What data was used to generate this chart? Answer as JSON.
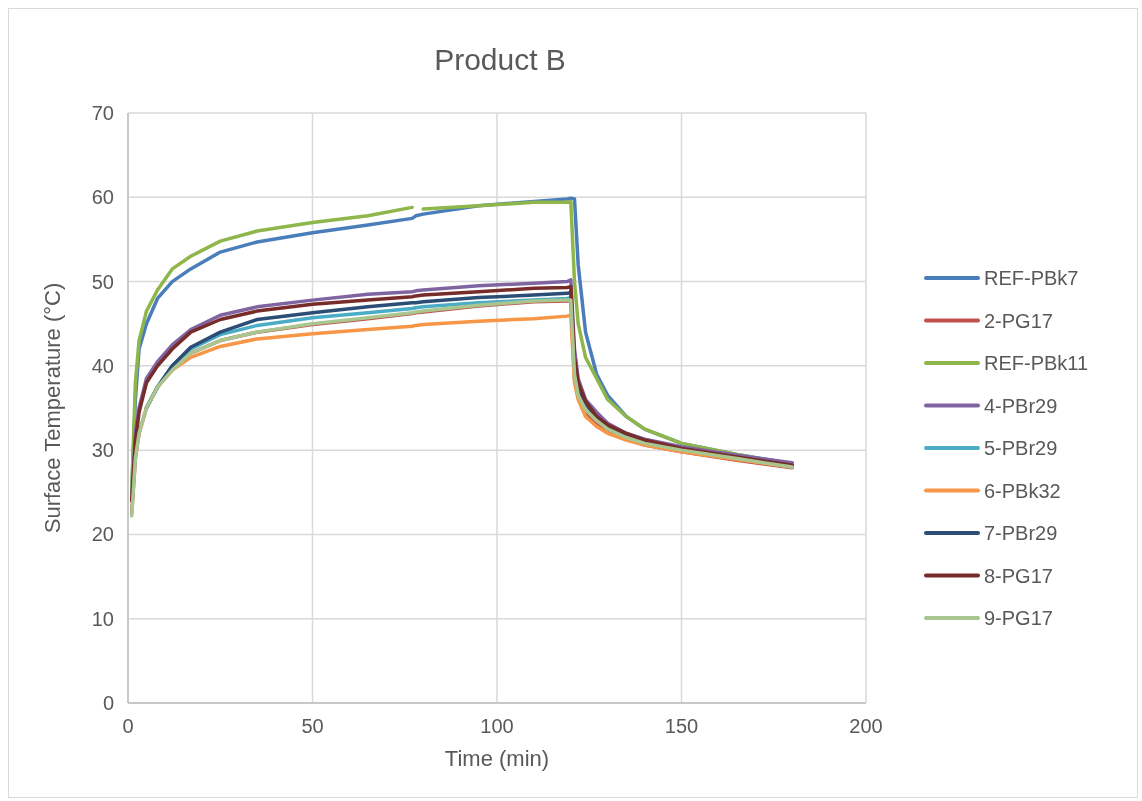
{
  "chart_data": {
    "type": "line",
    "title": "Product B",
    "xlabel": "Time (min)",
    "ylabel": "Surface Temperature (°C)",
    "x": [
      1,
      2,
      3,
      5,
      8,
      12,
      17,
      25,
      35,
      50,
      65,
      77,
      78,
      80,
      95,
      110,
      119,
      120,
      121,
      122,
      124,
      127,
      130,
      135,
      140,
      150,
      165,
      180
    ],
    "xlim": [
      0,
      200
    ],
    "xticks": [
      0,
      50,
      100,
      150,
      200
    ],
    "ylim": [
      0,
      70
    ],
    "yticks": [
      0,
      10,
      20,
      30,
      40,
      50,
      60,
      70
    ],
    "grid": true,
    "legend": "right",
    "line_style": "solid",
    "marker": "none",
    "series": [
      {
        "name": "REF-PBk7",
        "color": "#4a7ebb",
        "values": [
          25,
          36,
          42,
          45,
          48,
          50,
          51.5,
          53.5,
          54.7,
          55.8,
          56.7,
          57.5,
          57.8,
          58,
          59,
          59.5,
          59.8,
          59.9,
          59.8,
          52,
          44,
          39,
          36.5,
          34,
          32.5,
          30.8,
          29.5,
          28.4
        ]
      },
      {
        "name": "2-PG17",
        "color": "#c0504d",
        "values": [
          22.5,
          29,
          32,
          35,
          37.5,
          39.5,
          41.5,
          43,
          44,
          44.9,
          45.6,
          46.2,
          46.3,
          46.4,
          47.1,
          47.6,
          47.7,
          47.7,
          38.5,
          36.3,
          34.5,
          33.2,
          32.3,
          31.3,
          30.6,
          29.8,
          28.8,
          27.9
        ]
      },
      {
        "name": "REF-PBk11",
        "color": "#8fb64a",
        "values": [
          25,
          38,
          43,
          46.5,
          49,
          51.5,
          53,
          54.8,
          56,
          57,
          57.8,
          58.8,
          null,
          58.6,
          59,
          59.4,
          59.4,
          59.5,
          50,
          45,
          41,
          38.5,
          36,
          34,
          32.5,
          30.8,
          29.5,
          28.3
        ]
      },
      {
        "name": "4-PBr29",
        "color": "#8064a2",
        "values": [
          24,
          32,
          35,
          38.5,
          40.5,
          42.5,
          44.3,
          46,
          47,
          47.8,
          48.5,
          48.8,
          48.9,
          49,
          49.5,
          49.8,
          50,
          50.2,
          42,
          38.5,
          36,
          34.5,
          33.2,
          32,
          31.3,
          30.4,
          29.4,
          28.5
        ]
      },
      {
        "name": "5-PBr29",
        "color": "#4bacc6",
        "values": [
          null,
          null,
          null,
          35,
          37.5,
          40,
          42,
          43.7,
          44.8,
          45.7,
          46.3,
          46.8,
          46.9,
          47,
          47.5,
          47.8,
          48,
          48.1,
          39.5,
          null,
          null,
          null,
          null,
          null,
          null,
          null,
          null,
          null
        ]
      },
      {
        "name": "6-PBk32",
        "color": "#f79646",
        "values": [
          null,
          null,
          null,
          null,
          37.5,
          39.5,
          41,
          42.3,
          43.2,
          43.8,
          44.3,
          44.7,
          44.8,
          44.9,
          45.3,
          45.6,
          45.9,
          46,
          38,
          36,
          34,
          32.8,
          32,
          31.2,
          30.6,
          29.8,
          28.9,
          28
        ]
      },
      {
        "name": "7-PBr29",
        "color": "#2c4d75",
        "values": [
          null,
          null,
          null,
          35,
          37.5,
          40,
          42.2,
          44,
          45.5,
          46.3,
          47,
          47.5,
          47.5,
          47.6,
          48.1,
          48.4,
          48.6,
          48.7,
          40,
          37.5,
          35.5,
          33.8,
          32.8,
          31.8,
          31,
          30.1,
          29.1,
          28.1
        ]
      },
      {
        "name": "8-PG17",
        "color": "#772c2a",
        "values": [
          24,
          31,
          34.5,
          38,
          40,
          42,
          44,
          45.5,
          46.5,
          47.3,
          47.8,
          48.2,
          48.3,
          48.4,
          48.8,
          49.2,
          49.3,
          49.4,
          41,
          38,
          35.8,
          34,
          33,
          32,
          31.2,
          30.2,
          29.2,
          28.2
        ]
      },
      {
        "name": "9-PG17",
        "color": "#a9c68f",
        "values": [
          22.2,
          29,
          32,
          35,
          37.5,
          39.5,
          41.5,
          43,
          44,
          45,
          45.7,
          46.3,
          46.4,
          46.5,
          47.2,
          47.7,
          47.8,
          47.8,
          39,
          36.5,
          34.8,
          33.5,
          32.5,
          31.5,
          30.8,
          30,
          29,
          28
        ]
      }
    ]
  }
}
